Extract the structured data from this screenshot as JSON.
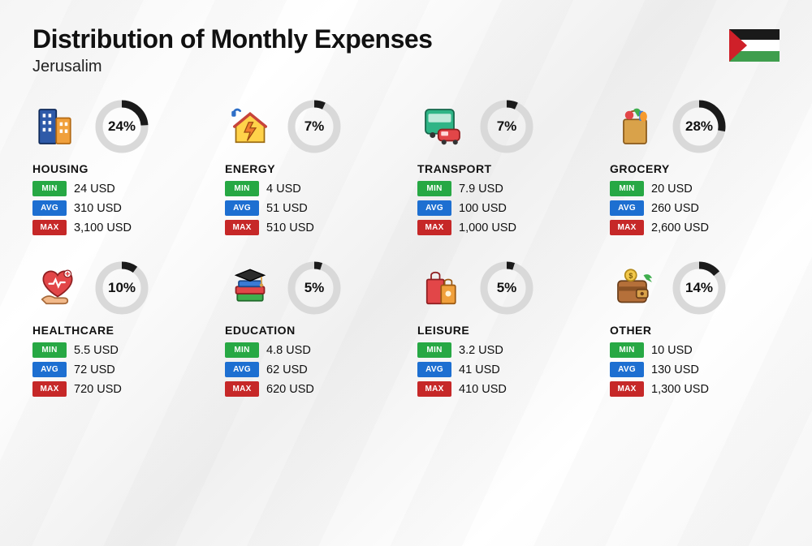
{
  "title": "Distribution of Monthly Expenses",
  "subtitle": "Jerusalim",
  "flag": {
    "stripe_top": "#1a1a1a",
    "stripe_mid": "#ffffff",
    "stripe_bot": "#3f9e4d",
    "triangle": "#cf2029"
  },
  "ring": {
    "radius": 28,
    "stroke_width": 9,
    "track_color": "#d9d9d9",
    "progress_color": "#1a1a1a"
  },
  "badges": {
    "min": {
      "label": "MIN",
      "color": "#27a844"
    },
    "avg": {
      "label": "AVG",
      "color": "#1d6fd1"
    },
    "max": {
      "label": "MAX",
      "color": "#c62828"
    }
  },
  "categories": [
    {
      "key": "housing",
      "name": "HOUSING",
      "percent": 24,
      "min": "24 USD",
      "avg": "310 USD",
      "max": "3,100 USD",
      "icon": "buildings"
    },
    {
      "key": "energy",
      "name": "ENERGY",
      "percent": 7,
      "min": "4 USD",
      "avg": "51 USD",
      "max": "510 USD",
      "icon": "energy-house"
    },
    {
      "key": "transport",
      "name": "TRANSPORT",
      "percent": 7,
      "min": "7.9 USD",
      "avg": "100 USD",
      "max": "1,000 USD",
      "icon": "bus-car"
    },
    {
      "key": "grocery",
      "name": "GROCERY",
      "percent": 28,
      "min": "20 USD",
      "avg": "260 USD",
      "max": "2,600 USD",
      "icon": "grocery-bag"
    },
    {
      "key": "healthcare",
      "name": "HEALTHCARE",
      "percent": 10,
      "min": "5.5 USD",
      "avg": "72 USD",
      "max": "720 USD",
      "icon": "heart-hand"
    },
    {
      "key": "education",
      "name": "EDUCATION",
      "percent": 5,
      "min": "4.8 USD",
      "avg": "62 USD",
      "max": "620 USD",
      "icon": "grad-books"
    },
    {
      "key": "leisure",
      "name": "LEISURE",
      "percent": 5,
      "min": "3.2 USD",
      "avg": "41 USD",
      "max": "410 USD",
      "icon": "shopping-bags"
    },
    {
      "key": "other",
      "name": "OTHER",
      "percent": 14,
      "min": "10 USD",
      "avg": "130 USD",
      "max": "1,300 USD",
      "icon": "wallet"
    }
  ]
}
